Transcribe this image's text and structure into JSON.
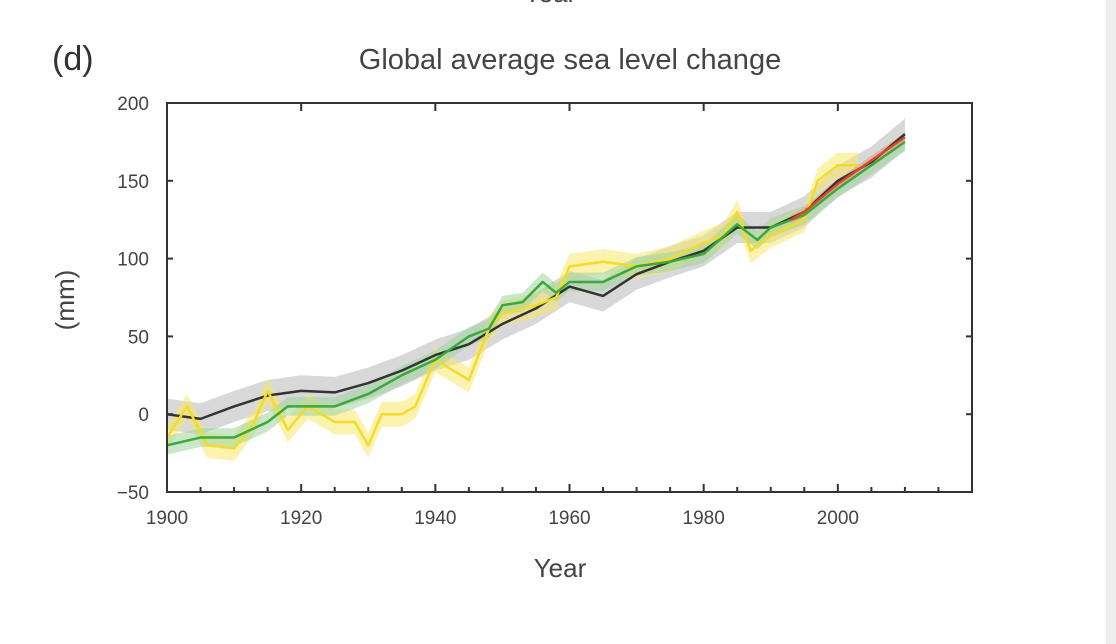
{
  "panel_label": "(d)",
  "top_cut_text": "Year",
  "chart_data": {
    "type": "line",
    "title": "Global average sea level change",
    "xlabel": "Year",
    "ylabel": "(mm)",
    "xlim": [
      1900,
      2020
    ],
    "ylim": [
      -50,
      200
    ],
    "xticks": [
      1900,
      1920,
      1940,
      1960,
      1980,
      2000
    ],
    "yticks": [
      -50,
      0,
      50,
      100,
      150,
      200
    ],
    "grid": false,
    "legend": "none",
    "series": [
      {
        "color": "#333333",
        "band_color": "#b8b8b8",
        "uncertainty": 10,
        "x": [
          1900,
          1905,
          1910,
          1915,
          1920,
          1925,
          1930,
          1935,
          1940,
          1945,
          1950,
          1955,
          1960,
          1965,
          1970,
          1975,
          1980,
          1985,
          1990,
          1995,
          2000,
          2005,
          2010
        ],
        "y": [
          0,
          -3,
          5,
          12,
          15,
          14,
          20,
          28,
          38,
          45,
          58,
          68,
          82,
          76,
          90,
          98,
          105,
          120,
          120,
          130,
          150,
          162,
          180
        ]
      },
      {
        "color": "#f2dc2a",
        "band_color": "#f7e86a",
        "uncertainty": 8,
        "x": [
          1900,
          1903,
          1906,
          1910,
          1913,
          1915,
          1918,
          1921,
          1925,
          1928,
          1930,
          1932,
          1935,
          1937,
          1940,
          1945,
          1948,
          1950,
          1955,
          1958,
          1960,
          1965,
          1970,
          1975,
          1980,
          1983,
          1985,
          1987,
          1990,
          1995,
          1997,
          2000,
          2003
        ],
        "y": [
          -15,
          5,
          -20,
          -22,
          -5,
          15,
          -10,
          5,
          -5,
          -5,
          -20,
          0,
          0,
          5,
          35,
          22,
          55,
          65,
          70,
          75,
          95,
          98,
          95,
          100,
          110,
          115,
          130,
          105,
          115,
          125,
          150,
          160,
          160
        ]
      },
      {
        "color": "#3aa83a",
        "band_color": "#9fd39f",
        "uncertainty": 6,
        "x": [
          1900,
          1905,
          1910,
          1915,
          1918,
          1920,
          1925,
          1930,
          1935,
          1940,
          1945,
          1948,
          1950,
          1953,
          1956,
          1958,
          1960,
          1965,
          1970,
          1975,
          1980,
          1985,
          1988,
          1990,
          1995,
          2000,
          2005,
          2010
        ],
        "y": [
          -20,
          -15,
          -15,
          -5,
          5,
          5,
          5,
          13,
          25,
          35,
          50,
          55,
          70,
          72,
          85,
          78,
          85,
          85,
          95,
          98,
          103,
          122,
          112,
          120,
          128,
          145,
          160,
          175
        ]
      },
      {
        "color": "#e0452a",
        "band_color": "#f0a090",
        "uncertainty": 3,
        "x": [
          1993,
          1995,
          2000,
          2005,
          2010
        ],
        "y": [
          125,
          130,
          148,
          163,
          178
        ]
      }
    ]
  }
}
